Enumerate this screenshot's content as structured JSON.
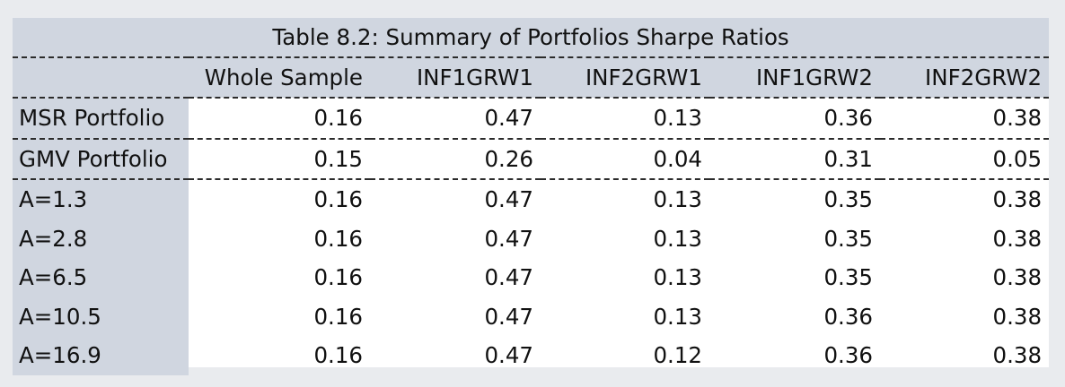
{
  "table": {
    "caption": "Table 8.2: Summary of Portfolios Sharpe Ratios",
    "columns": [
      "Whole Sample",
      "INF1GRW1",
      "INF2GRW1",
      "INF1GRW2",
      "INF2GRW2"
    ],
    "rows": [
      {
        "label": "MSR Portfolio",
        "values": [
          "0.16",
          "0.47",
          "0.13",
          "0.36",
          "0.38"
        ]
      },
      {
        "label": "GMV Portfolio",
        "values": [
          "0.15",
          "0.26",
          "0.04",
          "0.31",
          "0.05"
        ]
      },
      {
        "label": "A=1.3",
        "values": [
          "0.16",
          "0.47",
          "0.13",
          "0.35",
          "0.38"
        ]
      },
      {
        "label": "A=2.8",
        "values": [
          "0.16",
          "0.47",
          "0.13",
          "0.35",
          "0.38"
        ]
      },
      {
        "label": "A=6.5",
        "values": [
          "0.16",
          "0.47",
          "0.13",
          "0.35",
          "0.38"
        ]
      },
      {
        "label": "A=10.5",
        "values": [
          "0.16",
          "0.47",
          "0.13",
          "0.36",
          "0.38"
        ]
      },
      {
        "label": "A=16.9",
        "values": [
          "0.16",
          "0.47",
          "0.12",
          "0.36",
          "0.38"
        ]
      }
    ]
  },
  "colors": {
    "page_background": "#e9ebee",
    "header_fill": "#d0d6e0",
    "cell_fill": "#ffffff",
    "text": "#111111",
    "rule": "#2b2b2b"
  }
}
